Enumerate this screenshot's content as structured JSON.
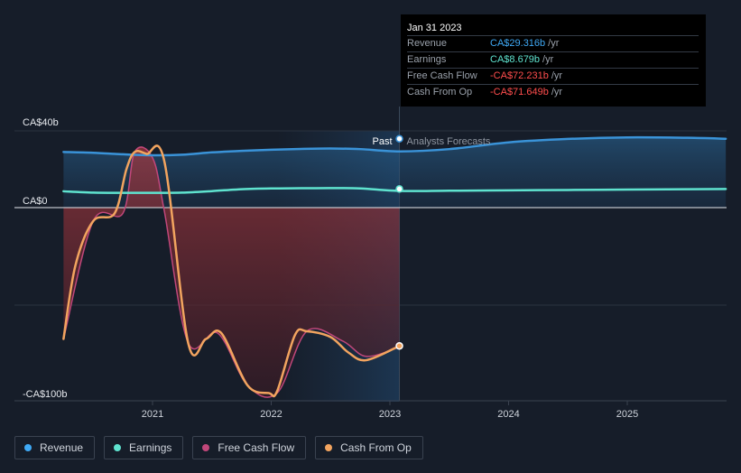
{
  "tooltip": {
    "date": "Jan 31 2023",
    "rows": [
      {
        "label": "Revenue",
        "value": "CA$29.316b",
        "unit": "/yr",
        "color": "#3fa9f5"
      },
      {
        "label": "Earnings",
        "value": "CA$8.679b",
        "unit": "/yr",
        "color": "#5fe3cf"
      },
      {
        "label": "Free Cash Flow",
        "value": "-CA$72.231b",
        "unit": "/yr",
        "color": "#ff4d4d"
      },
      {
        "label": "Cash From Op",
        "value": "-CA$71.649b",
        "unit": "/yr",
        "color": "#ff4d4d"
      }
    ]
  },
  "chart_data": {
    "type": "line",
    "y_tick_labels": [
      "CA$40b",
      "CA$0",
      "-CA$100b"
    ],
    "x_tick_labels": [
      "2021",
      "2022",
      "2023",
      "2024",
      "2025"
    ],
    "ylim": [
      -100,
      40
    ],
    "past_label": "Past",
    "forecast_label": "Analysts Forecasts",
    "divider_x": 2023.08,
    "colors": {
      "revenue": "#3a93d8",
      "earnings": "#5fe3cf",
      "fcf": "#c1477a",
      "cfo": "#f2a45f"
    },
    "series": [
      {
        "name": "Revenue",
        "x": [
          2020.25,
          2020.5,
          2020.75,
          2021.0,
          2021.25,
          2021.5,
          2021.75,
          2022.0,
          2022.25,
          2022.5,
          2022.75,
          2023.08,
          2023.5,
          2024.0,
          2024.5,
          2025.0,
          2025.5,
          2025.83
        ],
        "values": [
          29.0,
          28.6,
          27.8,
          27.3,
          27.6,
          28.8,
          29.6,
          30.2,
          30.6,
          30.8,
          30.5,
          29.3,
          30.5,
          34.0,
          35.8,
          36.6,
          36.4,
          35.9
        ]
      },
      {
        "name": "Earnings",
        "x": [
          2020.25,
          2020.5,
          2020.75,
          2021.0,
          2021.25,
          2021.5,
          2021.75,
          2022.0,
          2022.25,
          2022.5,
          2022.75,
          2023.08,
          2023.5,
          2024.0,
          2024.5,
          2025.0,
          2025.5,
          2025.83
        ],
        "values": [
          8.5,
          7.8,
          7.7,
          7.7,
          7.8,
          8.6,
          9.6,
          10.0,
          10.1,
          10.2,
          10.0,
          8.7,
          8.8,
          9.0,
          9.2,
          9.4,
          9.6,
          9.7
        ]
      },
      {
        "name": "Free Cash Flow",
        "x": [
          2020.25,
          2020.5,
          2020.75,
          2020.85,
          2021.0,
          2021.1,
          2021.3,
          2021.55,
          2021.8,
          2022.05,
          2022.3,
          2022.6,
          2022.8,
          2023.08
        ],
        "values": [
          -68,
          -7,
          -3,
          29,
          26,
          -2,
          -70,
          -65,
          -92,
          -96,
          -64,
          -69,
          -77,
          -72.2
        ]
      },
      {
        "name": "Cash From Op",
        "x": [
          2020.25,
          2020.35,
          2020.5,
          2020.68,
          2020.78,
          2020.85,
          2020.95,
          2021.1,
          2021.3,
          2021.45,
          2021.58,
          2021.8,
          2021.98,
          2022.05,
          2022.2,
          2022.3,
          2022.5,
          2022.65,
          2022.8,
          2023.08
        ],
        "values": [
          -68,
          -30,
          -7,
          -3,
          20,
          29,
          28,
          24,
          -70,
          -68,
          -65,
          -92,
          -96,
          -95,
          -66,
          -64,
          -67,
          -75,
          -79,
          -71.6
        ]
      }
    ]
  },
  "legend": [
    {
      "label": "Revenue",
      "color": "#3fa9f5"
    },
    {
      "label": "Earnings",
      "color": "#5fe3cf"
    },
    {
      "label": "Free Cash Flow",
      "color": "#c1477a"
    },
    {
      "label": "Cash From Op",
      "color": "#f2a45f"
    }
  ]
}
